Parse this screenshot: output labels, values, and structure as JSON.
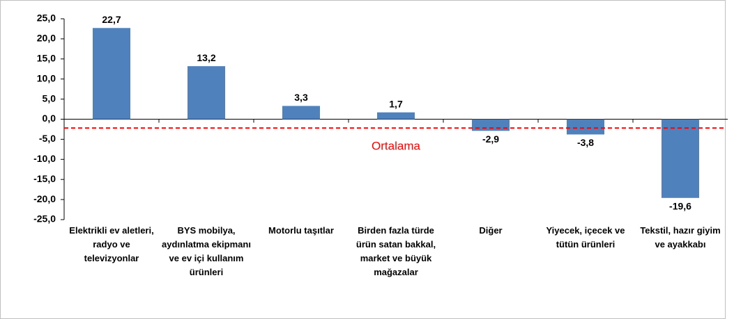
{
  "chart_data": {
    "type": "bar",
    "categories": [
      "Elektrikli ev aletleri, radyo ve televizyonlar",
      "BYS mobilya, aydınlatma ekipmanı ve ev içi kullanım ürünleri",
      "Motorlu taşıtlar",
      "Birden fazla türde ürün satan bakkal, market ve büyük mağazalar",
      "Diğer",
      "Yiyecek, içecek ve tütün ürünleri",
      "Tekstil, hazır giyim ve ayakkabı"
    ],
    "values": [
      22.7,
      13.2,
      3.3,
      1.7,
      -2.9,
      -3.8,
      -19.6
    ],
    "value_labels": [
      "22,7",
      "13,2",
      "3,3",
      "1,7",
      "-2,9",
      "-3,8",
      "-19,6"
    ],
    "color": "#4f81bd",
    "ylim": [
      -25,
      25
    ],
    "yticks": [
      {
        "value": 25,
        "label": "25,0"
      },
      {
        "value": 20,
        "label": "20,0"
      },
      {
        "value": 15,
        "label": "15,0"
      },
      {
        "value": 10,
        "label": "10,0"
      },
      {
        "value": 5,
        "label": "5,0"
      },
      {
        "value": 0,
        "label": "0,0"
      },
      {
        "value": -5,
        "label": "-5,0"
      },
      {
        "value": -10,
        "label": "-10,0"
      },
      {
        "value": -15,
        "label": "-15,0"
      },
      {
        "value": -20,
        "label": "-20,0"
      },
      {
        "value": -25,
        "label": "-25,0"
      }
    ],
    "reference_line": {
      "value": -2.2,
      "label": "Ortalama",
      "color": "#ff0000"
    },
    "grid": false
  }
}
